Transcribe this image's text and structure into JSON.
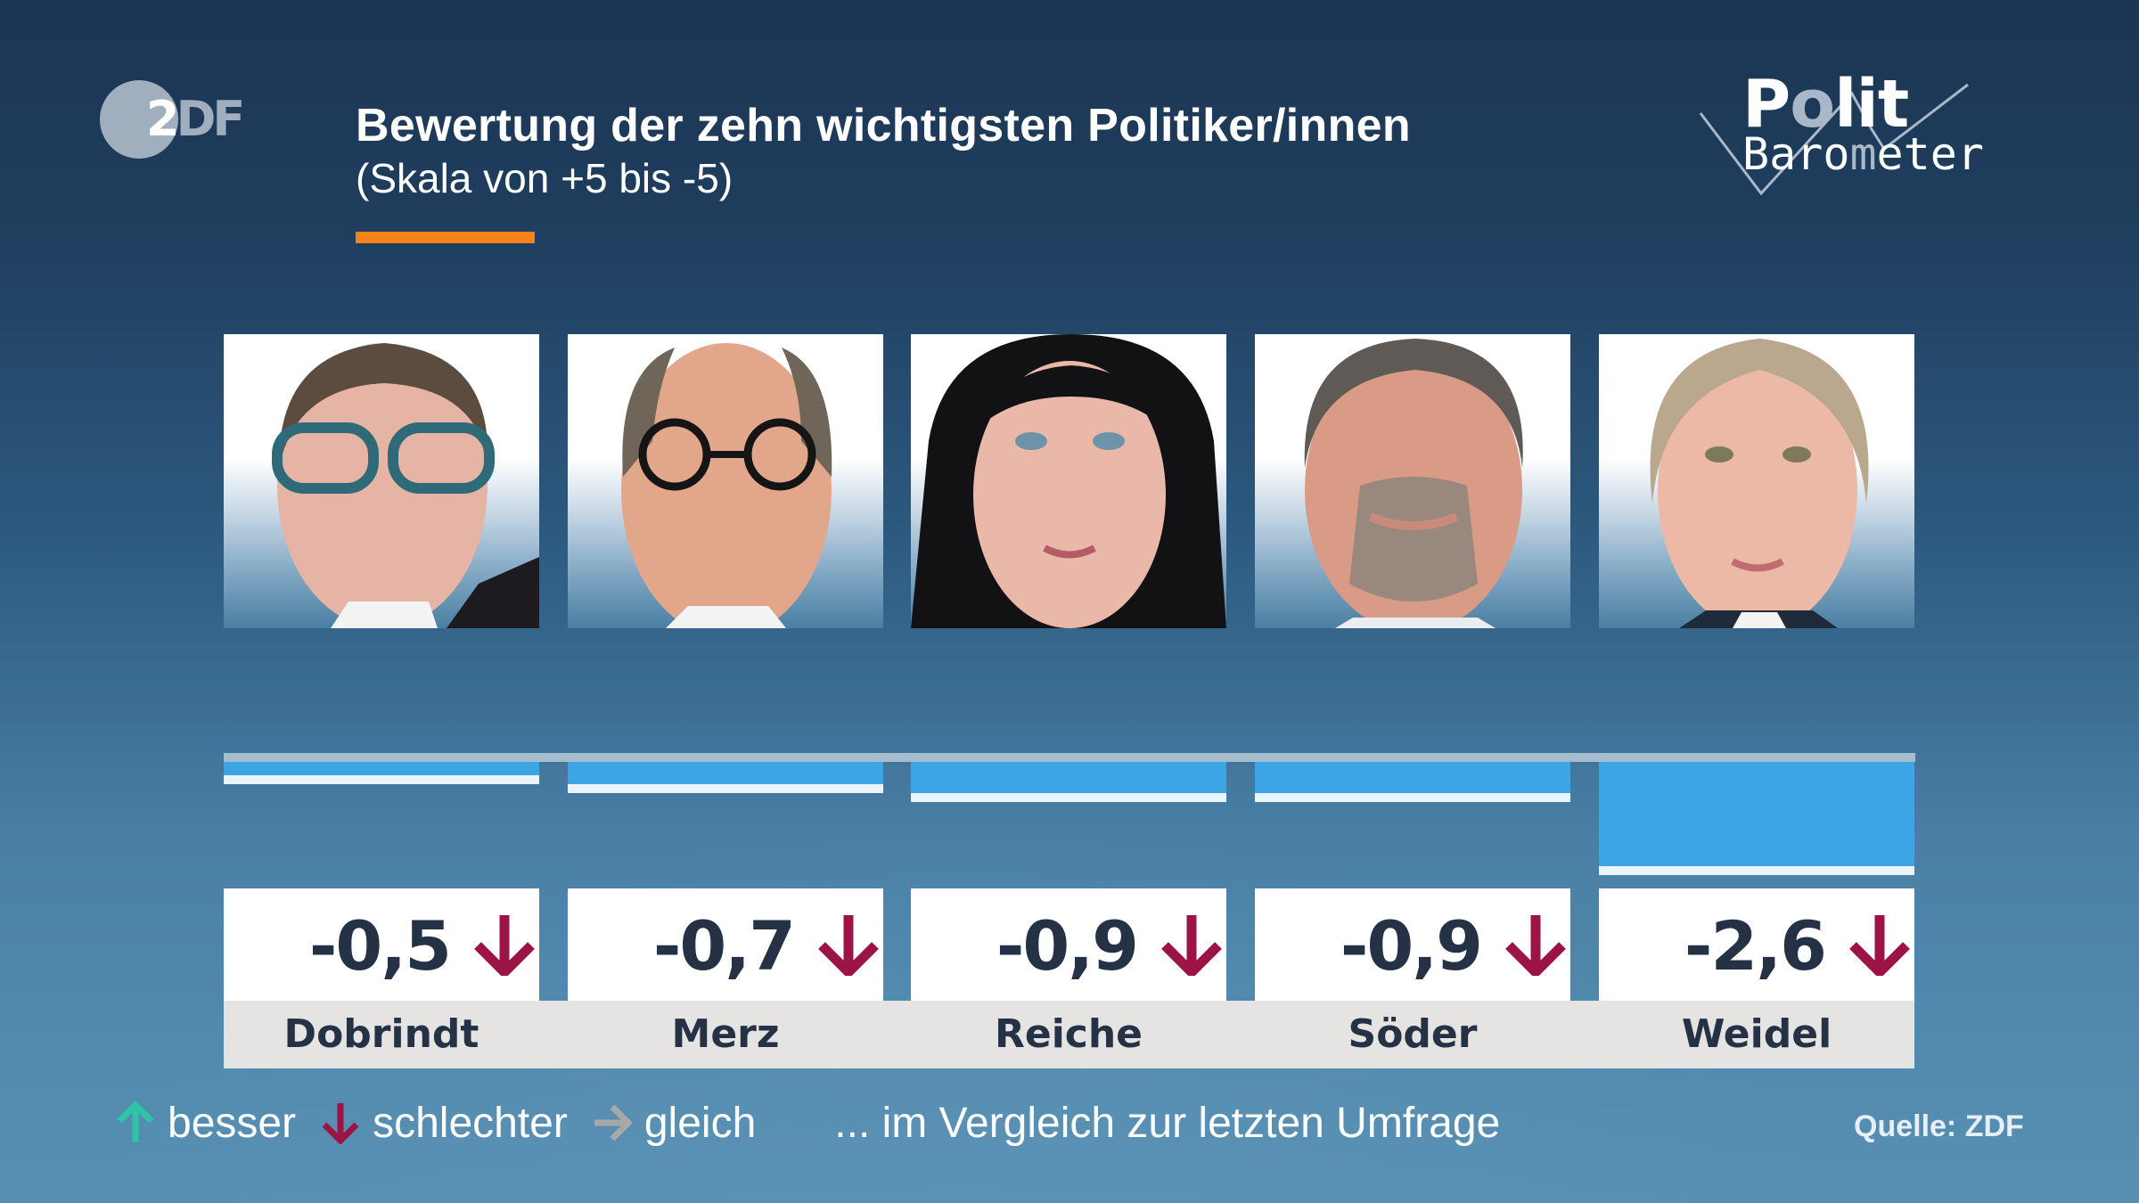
{
  "header": {
    "broadcaster_logo": "ZDF",
    "broadcaster_logo_parts": {
      "digit": "2",
      "letters": "DF"
    },
    "title": "Bewertung der zehn wichtigsten Politiker/innen",
    "subtitle": "(Skala von +5 bis -5)",
    "show_logo": {
      "line1": "Polit",
      "line2": "Barometer"
    }
  },
  "colors": {
    "background_top": "#1c3654",
    "background_bottom": "#5890b4",
    "accent_orange": "#f7821b",
    "bar_blue": "#3ca5e6",
    "bar_tip": "#eaf4fb",
    "axis": "#a7bccd",
    "value_text": "#253246",
    "arrow_up": "#2ec4a8",
    "arrow_down": "#9c1446",
    "arrow_same": "#a8a8a8",
    "name_strip": "#e5e4e2"
  },
  "politicians": [
    {
      "name": "Dobrindt",
      "value": "-0,5",
      "trend": "down",
      "trend_icon": "arrow-down-icon"
    },
    {
      "name": "Merz",
      "value": "-0,7",
      "trend": "down",
      "trend_icon": "arrow-down-icon"
    },
    {
      "name": "Reiche",
      "value": "-0,9",
      "trend": "down",
      "trend_icon": "arrow-down-icon"
    },
    {
      "name": "Söder",
      "value": "-0,9",
      "trend": "down",
      "trend_icon": "arrow-down-icon"
    },
    {
      "name": "Weidel",
      "value": "-2,6",
      "trend": "down",
      "trend_icon": "arrow-down-icon"
    }
  ],
  "legend": {
    "items": [
      {
        "icon": "arrow-up-icon",
        "label": "besser"
      },
      {
        "icon": "arrow-down-icon",
        "label": "schlechter"
      },
      {
        "icon": "arrow-right-icon",
        "label": "gleich"
      }
    ],
    "note": "... im Vergleich zur letzten Umfrage"
  },
  "source": "Quelle: ZDF",
  "chart_data": {
    "type": "bar",
    "title": "Bewertung der zehn wichtigsten Politiker/innen",
    "subtitle": "(Skala von +5 bis -5)",
    "categories": [
      "Dobrindt",
      "Merz",
      "Reiche",
      "Söder",
      "Weidel"
    ],
    "values": [
      -0.5,
      -0.7,
      -0.9,
      -0.9,
      -2.6
    ],
    "value_labels": [
      "-0,5",
      "-0,7",
      "-0,9",
      "-0,9",
      "-2,6"
    ],
    "trend_vs_last_survey": [
      "down",
      "down",
      "down",
      "down",
      "down"
    ],
    "xlabel": "",
    "ylabel": "",
    "ylim": [
      -5,
      5
    ],
    "orientation": "vertical bars hanging below zero axis",
    "grid": false,
    "legend": [
      "besser",
      "schlechter",
      "gleich"
    ],
    "legend_position": "bottom-left",
    "annotation": "... im Vergleich zur letzten Umfrage",
    "source": "Quelle: ZDF"
  }
}
